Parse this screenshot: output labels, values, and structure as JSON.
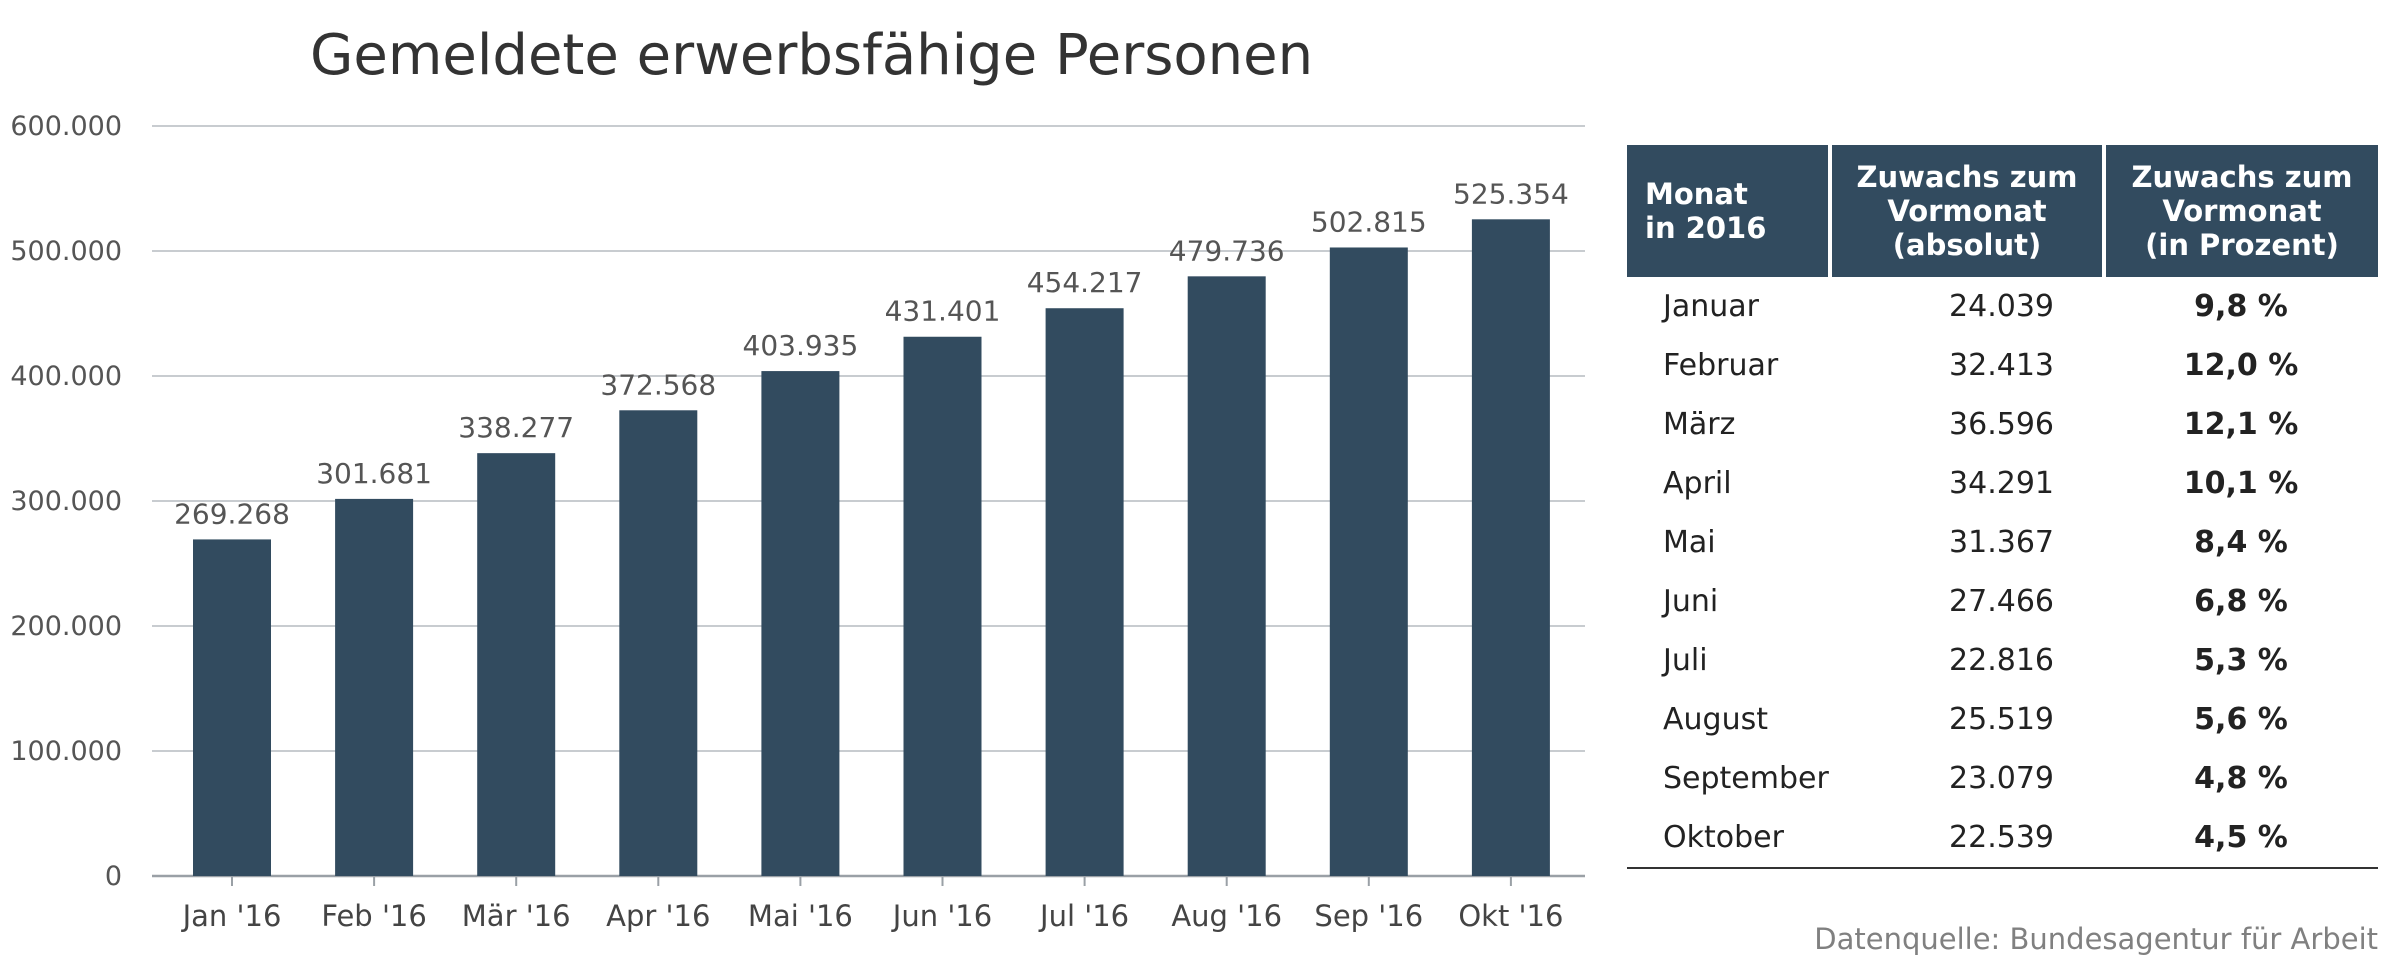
{
  "chart_data": {
    "type": "bar",
    "title": "Gemeldete erwerbsfähige Personen",
    "categories": [
      "Jan '16",
      "Feb '16",
      "Mär '16",
      "Apr '16",
      "Mai '16",
      "Jun '16",
      "Jul '16",
      "Aug '16",
      "Sep '16",
      "Okt '16"
    ],
    "values": [
      269268,
      301681,
      338277,
      372568,
      403935,
      431401,
      454217,
      479736,
      502815,
      525354
    ],
    "value_labels": [
      "269.268",
      "301.681",
      "338.277",
      "372.568",
      "403.935",
      "431.401",
      "454.217",
      "479.736",
      "502.815",
      "525.354"
    ],
    "yticks": [
      0,
      100000,
      200000,
      300000,
      400000,
      500000,
      600000
    ],
    "ytick_labels": [
      "0",
      "100.000",
      "200.000",
      "300.000",
      "400.000",
      "500.000",
      "600.000"
    ],
    "ylim": [
      0,
      600000
    ],
    "xlabel": "",
    "ylabel": "",
    "grid": true,
    "bar_color": "#324b5f",
    "grid_color": "#c8ccd0"
  },
  "table": {
    "headers": [
      "Monat\nin 2016",
      "Zuwachs zum\nVormonat\n(absolut)",
      "Zuwachs zum\nVormonat\n(in Prozent)"
    ],
    "rows": [
      [
        "Januar",
        "24.039",
        "9,8 %"
      ],
      [
        "Februar",
        "32.413",
        "12,0 %"
      ],
      [
        "März",
        "36.596",
        "12,1 %"
      ],
      [
        "April",
        "34.291",
        "10,1 %"
      ],
      [
        "Mai",
        "31.367",
        "8,4 %"
      ],
      [
        "Juni",
        "27.466",
        "6,8 %"
      ],
      [
        "Juli",
        "22.816",
        "5,3 %"
      ],
      [
        "August",
        "25.519",
        "5,6 %"
      ],
      [
        "September",
        "23.079",
        "4,8 %"
      ],
      [
        "Oktober",
        "22.539",
        "4,5 %"
      ]
    ],
    "header_color": "#324b5f"
  },
  "source": "Datenquelle: Bundesagentur für Arbeit"
}
